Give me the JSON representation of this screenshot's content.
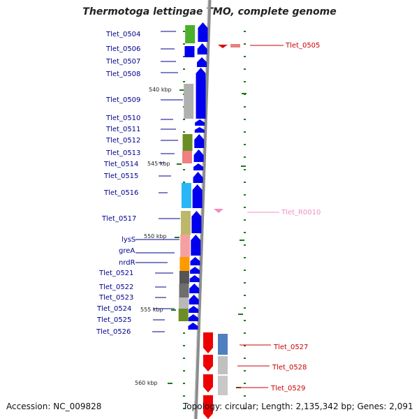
{
  "map": {
    "title": "Thermotoga lettingae TMO, complete genome",
    "footer": {
      "accession": "Accession: NC_009828",
      "topology": "Topology: circular; Length: 2,135,342 bp; Genes: 2,091"
    },
    "base_labels": [
      {
        "id": "b540",
        "text": "540 kbp"
      },
      {
        "id": "b545",
        "text": "545 kbp"
      },
      {
        "id": "b550",
        "text": "550 kbp"
      },
      {
        "id": "b555",
        "text": "555 kbp"
      },
      {
        "id": "b560",
        "text": "560 kbp"
      }
    ],
    "left_genes": [
      {
        "id": "g0504",
        "text": "Tlet_0504"
      },
      {
        "id": "g0506",
        "text": "Tlet_0506"
      },
      {
        "id": "g0507",
        "text": "Tlet_0507"
      },
      {
        "id": "g0508",
        "text": "Tlet_0508"
      },
      {
        "id": "g0509",
        "text": "Tlet_0509"
      },
      {
        "id": "g0510",
        "text": "Tlet_0510"
      },
      {
        "id": "g0511",
        "text": "Tlet_0511"
      },
      {
        "id": "g0512",
        "text": "Tlet_0512"
      },
      {
        "id": "g0513",
        "text": "Tlet_0513"
      },
      {
        "id": "g0514",
        "text": "Tlet_0514"
      },
      {
        "id": "g0515",
        "text": "Tlet_0515"
      },
      {
        "id": "g0516",
        "text": "Tlet_0516"
      },
      {
        "id": "g0517",
        "text": "Tlet_0517"
      },
      {
        "id": "glysS",
        "text": "lysS"
      },
      {
        "id": "ggreA",
        "text": "greA"
      },
      {
        "id": "gnrdR",
        "text": "nrdR"
      },
      {
        "id": "g0521",
        "text": "Tlet_0521"
      },
      {
        "id": "g0522",
        "text": "Tlet_0522"
      },
      {
        "id": "g0523",
        "text": "Tlet_0523"
      },
      {
        "id": "g0524",
        "text": "Tlet_0524"
      },
      {
        "id": "g0525",
        "text": "Tlet_0525"
      },
      {
        "id": "g0526",
        "text": "Tlet_0526"
      }
    ],
    "right_genes": [
      {
        "id": "g0505",
        "text": "Tlet_0505"
      },
      {
        "id": "gR0010",
        "text": "Tlet_R0010"
      },
      {
        "id": "g0527",
        "text": "Tlet_0527"
      },
      {
        "id": "g0528",
        "text": "Tlet_0528"
      },
      {
        "id": "g0529",
        "text": "Tlet_0529"
      }
    ],
    "colors": {
      "backbone": "#8c8c8c",
      "forward_cds": "#0000ee",
      "reverse_cds": "#ee0000",
      "left_label": "#00008b",
      "right_label": "#cc0000",
      "rna_label": "#f08fc0",
      "tick": "#1a7a1a"
    }
  }
}
